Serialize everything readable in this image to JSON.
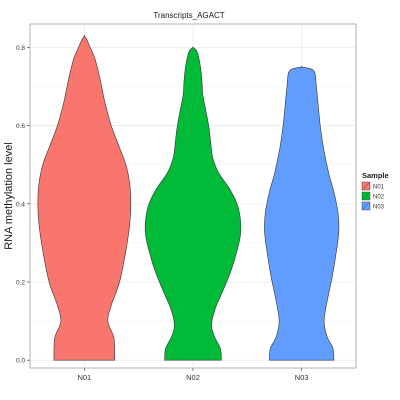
{
  "chart_data": {
    "type": "violin",
    "title": "Transcripts_AGACT",
    "xlabel": "",
    "ylabel": "RNA methylation level",
    "categories": [
      "N01",
      "N02",
      "N03"
    ],
    "ylim": [
      -0.02,
      0.86
    ],
    "yticks": [
      0.0,
      0.2,
      0.4,
      0.6,
      0.8
    ],
    "ytick_labels": [
      "0.0",
      "0.2",
      "0.4",
      "0.6",
      "0.8"
    ],
    "grid": true,
    "legend": {
      "title": "Sample",
      "position": "right",
      "entries": [
        "N01",
        "N02",
        "N03"
      ]
    },
    "series": [
      {
        "category": "N01",
        "color": "#F8766D",
        "range": [
          0.0,
          0.83
        ],
        "density_profile": [
          [
            0.0,
            0.62
          ],
          [
            0.03,
            0.62
          ],
          [
            0.06,
            0.6
          ],
          [
            0.1,
            0.48
          ],
          [
            0.14,
            0.55
          ],
          [
            0.2,
            0.72
          ],
          [
            0.28,
            0.85
          ],
          [
            0.35,
            0.93
          ],
          [
            0.4,
            0.95
          ],
          [
            0.45,
            0.93
          ],
          [
            0.5,
            0.85
          ],
          [
            0.55,
            0.7
          ],
          [
            0.6,
            0.55
          ],
          [
            0.66,
            0.42
          ],
          [
            0.72,
            0.32
          ],
          [
            0.77,
            0.22
          ],
          [
            0.8,
            0.12
          ],
          [
            0.82,
            0.05
          ],
          [
            0.83,
            0.0
          ]
        ]
      },
      {
        "category": "N02",
        "color": "#00BA38",
        "range": [
          0.0,
          0.8
        ],
        "density_profile": [
          [
            0.0,
            0.58
          ],
          [
            0.03,
            0.56
          ],
          [
            0.06,
            0.44
          ],
          [
            0.09,
            0.38
          ],
          [
            0.13,
            0.45
          ],
          [
            0.18,
            0.62
          ],
          [
            0.23,
            0.78
          ],
          [
            0.28,
            0.9
          ],
          [
            0.32,
            0.97
          ],
          [
            0.36,
            0.97
          ],
          [
            0.4,
            0.9
          ],
          [
            0.44,
            0.74
          ],
          [
            0.48,
            0.52
          ],
          [
            0.52,
            0.4
          ],
          [
            0.56,
            0.36
          ],
          [
            0.6,
            0.32
          ],
          [
            0.64,
            0.26
          ],
          [
            0.68,
            0.2
          ],
          [
            0.72,
            0.18
          ],
          [
            0.76,
            0.14
          ],
          [
            0.79,
            0.08
          ],
          [
            0.8,
            0.0
          ]
        ]
      },
      {
        "category": "N03",
        "color": "#619CFF",
        "range": [
          0.0,
          0.75
        ],
        "density_profile": [
          [
            0.0,
            0.66
          ],
          [
            0.03,
            0.64
          ],
          [
            0.06,
            0.52
          ],
          [
            0.1,
            0.46
          ],
          [
            0.15,
            0.52
          ],
          [
            0.21,
            0.62
          ],
          [
            0.27,
            0.7
          ],
          [
            0.33,
            0.76
          ],
          [
            0.38,
            0.74
          ],
          [
            0.43,
            0.66
          ],
          [
            0.48,
            0.55
          ],
          [
            0.54,
            0.45
          ],
          [
            0.6,
            0.38
          ],
          [
            0.65,
            0.34
          ],
          [
            0.7,
            0.3
          ],
          [
            0.74,
            0.25
          ],
          [
            0.75,
            0.0
          ]
        ]
      }
    ]
  }
}
